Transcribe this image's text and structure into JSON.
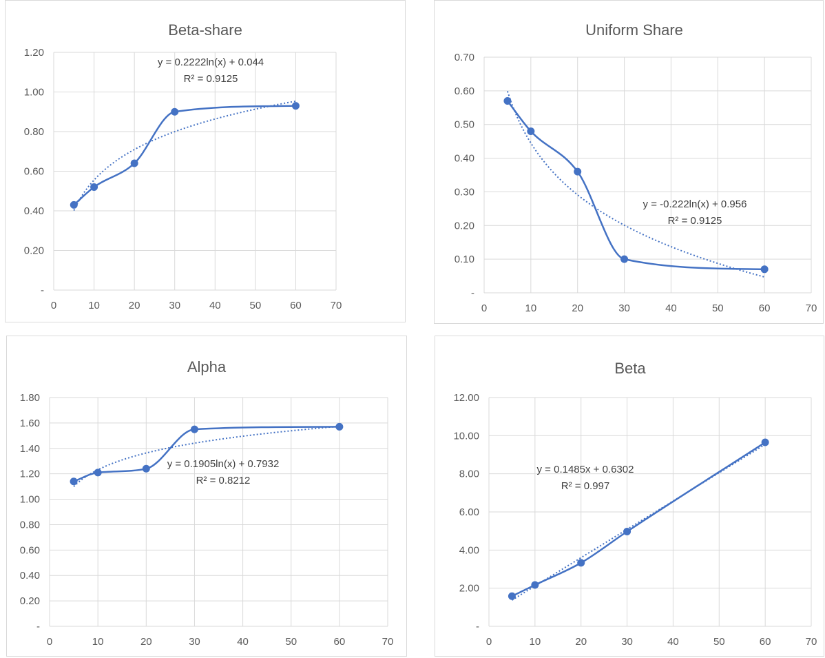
{
  "colors": {
    "series": "#4472c4",
    "grid": "#d9d9d9",
    "text": "#595959"
  },
  "chart_data": [
    {
      "type": "scatter",
      "title": "Beta-share",
      "x": [
        5,
        10,
        20,
        30,
        60
      ],
      "series": [
        {
          "values": [
            0.43,
            0.52,
            0.64,
            0.9,
            0.93
          ]
        }
      ],
      "xlim": [
        0,
        70
      ],
      "ylim": [
        0,
        1.2
      ],
      "xticks": [
        "0",
        "10",
        "20",
        "30",
        "40",
        "50",
        "60",
        "70"
      ],
      "yticks": [
        "-",
        "0.20",
        "0.40",
        "0.60",
        "0.80",
        "1.00",
        "1.20"
      ],
      "trendline": {
        "kind": "log",
        "a": 0.2222,
        "b": 0.044,
        "equation": "y = 0.2222ln(x) + 0.044",
        "r2": "R² = 0.9125"
      },
      "grid": true,
      "legend": "none"
    },
    {
      "type": "scatter",
      "title": "Uniform Share",
      "x": [
        5,
        10,
        20,
        30,
        60
      ],
      "series": [
        {
          "values": [
            0.57,
            0.48,
            0.36,
            0.1,
            0.07
          ]
        }
      ],
      "xlim": [
        0,
        70
      ],
      "ylim": [
        0,
        0.7
      ],
      "xticks": [
        "0",
        "10",
        "20",
        "30",
        "40",
        "50",
        "60",
        "70"
      ],
      "yticks": [
        "-",
        "0.10",
        "0.20",
        "0.30",
        "0.40",
        "0.50",
        "0.60",
        "0.70"
      ],
      "trendline": {
        "kind": "log",
        "a": -0.222,
        "b": 0.956,
        "equation": "y = -0.222ln(x) + 0.956",
        "r2": "R² = 0.9125"
      },
      "grid": true,
      "legend": "none"
    },
    {
      "type": "scatter",
      "title": "Alpha",
      "x": [
        5,
        10,
        20,
        30,
        60
      ],
      "series": [
        {
          "values": [
            1.14,
            1.21,
            1.24,
            1.55,
            1.57
          ]
        }
      ],
      "xlim": [
        0,
        70
      ],
      "ylim": [
        0,
        1.8
      ],
      "xticks": [
        "0",
        "10",
        "20",
        "30",
        "40",
        "50",
        "60",
        "70"
      ],
      "yticks": [
        "-",
        "0.20",
        "0.40",
        "0.60",
        "0.80",
        "1.00",
        "1.20",
        "1.40",
        "1.60",
        "1.80"
      ],
      "trendline": {
        "kind": "log",
        "a": 0.1905,
        "b": 0.7932,
        "equation": "y = 0.1905ln(x) + 0.7932",
        "r2": "R² = 0.8212"
      },
      "grid": true,
      "legend": "none"
    },
    {
      "type": "scatter",
      "title": "Beta",
      "x": [
        5,
        10,
        20,
        30,
        60
      ],
      "series": [
        {
          "values": [
            1.58,
            2.17,
            3.33,
            4.97,
            9.65
          ]
        }
      ],
      "xlim": [
        0,
        70
      ],
      "ylim": [
        0,
        12
      ],
      "xticks": [
        "0",
        "10",
        "20",
        "30",
        "40",
        "50",
        "60",
        "70"
      ],
      "yticks": [
        "-",
        "2.00",
        "4.00",
        "6.00",
        "8.00",
        "10.00",
        "12.00"
      ],
      "trendline": {
        "kind": "linear",
        "a": 0.1485,
        "b": 0.6302,
        "equation": "y = 0.1485x + 0.6302",
        "r2": "R² = 0.997"
      },
      "grid": true,
      "legend": "none"
    }
  ]
}
